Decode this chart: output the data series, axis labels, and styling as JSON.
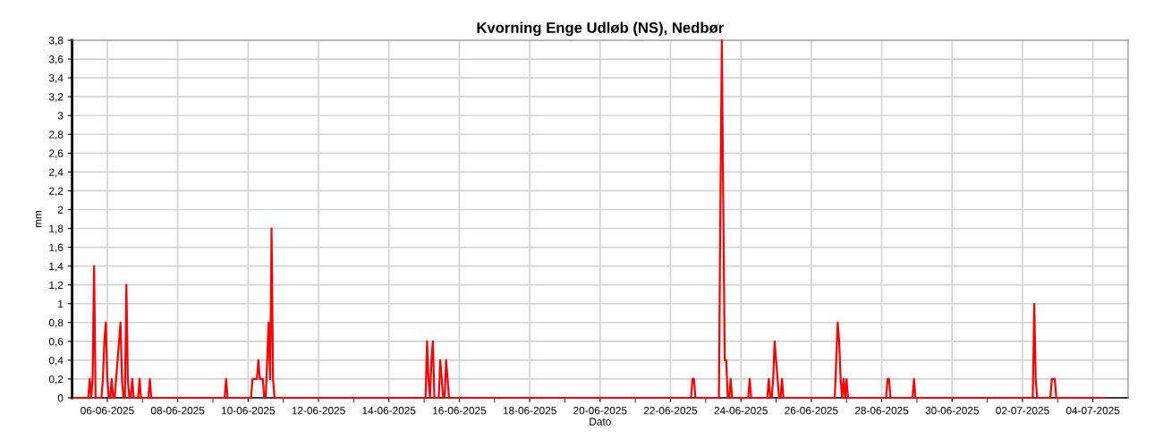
{
  "chart_data": {
    "type": "line",
    "title": "Kvorning Enge Udløb (NS), Nedbør",
    "xlabel": "Dato",
    "ylabel": "mm",
    "series": [
      {
        "color": "#ff0000",
        "x": [
          "2025-06-05T01:00",
          "2025-06-05T11:00",
          "2025-06-05T12:00",
          "2025-06-05T13:00",
          "2025-06-05T14:00",
          "2025-06-05T15:00",
          "2025-06-05T16:00",
          "2025-06-05T20:00",
          "2025-06-05T21:00",
          "2025-06-05T22:00",
          "2025-06-05T23:00",
          "2025-06-06T00:00",
          "2025-06-06T01:00",
          "2025-06-06T02:00",
          "2025-06-06T03:00",
          "2025-06-06T04:00",
          "2025-06-06T05:00",
          "2025-06-06T06:00",
          "2025-06-06T07:00",
          "2025-06-06T08:00",
          "2025-06-06T09:00",
          "2025-06-06T10:00",
          "2025-06-06T11:00",
          "2025-06-06T12:00",
          "2025-06-06T13:00",
          "2025-06-06T14:00",
          "2025-06-06T15:00",
          "2025-06-06T16:00",
          "2025-06-06T17:00",
          "2025-06-06T18:00",
          "2025-06-06T21:00",
          "2025-06-06T22:00",
          "2025-06-06T23:00",
          "2025-06-07T04:00",
          "2025-06-07T05:00",
          "2025-06-07T06:00",
          "2025-06-09T08:00",
          "2025-06-09T09:00",
          "2025-06-09T10:00",
          "2025-06-10T02:00",
          "2025-06-10T03:00",
          "2025-06-10T04:00",
          "2025-06-10T05:00",
          "2025-06-10T06:00",
          "2025-06-10T07:00",
          "2025-06-10T08:00",
          "2025-06-10T09:00",
          "2025-06-10T10:00",
          "2025-06-10T11:00",
          "2025-06-10T12:00",
          "2025-06-10T13:00",
          "2025-06-10T14:00",
          "2025-06-10T15:00",
          "2025-06-10T16:00",
          "2025-06-10T17:00",
          "2025-06-10T18:00",
          "2025-06-15T01:00",
          "2025-06-15T02:00",
          "2025-06-15T03:00",
          "2025-06-15T04:00",
          "2025-06-15T05:00",
          "2025-06-15T06:00",
          "2025-06-15T07:00",
          "2025-06-15T10:00",
          "2025-06-15T11:00",
          "2025-06-15T12:00",
          "2025-06-15T13:00",
          "2025-06-15T14:00",
          "2025-06-15T15:00",
          "2025-06-15T16:00",
          "2025-06-15T17:00",
          "2025-06-22T14:00",
          "2025-06-22T15:00",
          "2025-06-22T16:00",
          "2025-06-22T17:00",
          "2025-06-23T09:00",
          "2025-06-23T10:00",
          "2025-06-23T11:00",
          "2025-06-23T12:00",
          "2025-06-23T13:00",
          "2025-06-23T14:00",
          "2025-06-23T15:00",
          "2025-06-23T16:00",
          "2025-06-23T17:00",
          "2025-06-23T18:00",
          "2025-06-24T05:00",
          "2025-06-24T06:00",
          "2025-06-24T07:00",
          "2025-06-24T18:00",
          "2025-06-24T19:00",
          "2025-06-24T20:00",
          "2025-06-24T21:00",
          "2025-06-24T22:00",
          "2025-06-24T23:00",
          "2025-06-25T00:00",
          "2025-06-25T01:00",
          "2025-06-25T02:00",
          "2025-06-25T03:00",
          "2025-06-25T04:00",
          "2025-06-25T05:00",
          "2025-06-26T16:00",
          "2025-06-26T17:00",
          "2025-06-26T18:00",
          "2025-06-26T19:00",
          "2025-06-26T20:00",
          "2025-06-26T21:00",
          "2025-06-26T22:00",
          "2025-06-26T23:00",
          "2025-06-27T00:00",
          "2025-06-27T01:00",
          "2025-06-28T03:00",
          "2025-06-28T04:00",
          "2025-06-28T05:00",
          "2025-06-28T06:00",
          "2025-06-28T21:00",
          "2025-06-28T22:00",
          "2025-06-28T23:00",
          "2025-07-02T07:00",
          "2025-07-02T08:00",
          "2025-07-02T09:00",
          "2025-07-02T10:00",
          "2025-07-02T19:00",
          "2025-07-02T20:00",
          "2025-07-02T21:00",
          "2025-07-02T22:00",
          "2025-07-02T23:00",
          "2025-07-04T07:00"
        ],
        "values": [
          0,
          0,
          0.2,
          0,
          0.2,
          1.4,
          0,
          0,
          0.2,
          0.6,
          0.8,
          0.2,
          0,
          0,
          0.2,
          0,
          0,
          0.2,
          0.4,
          0.6,
          0.8,
          0.2,
          0,
          0,
          1.2,
          0.2,
          0,
          0,
          0.2,
          0,
          0,
          0.2,
          0,
          0,
          0.2,
          0,
          0,
          0.2,
          0,
          0,
          0.2,
          0.2,
          0.2,
          0.2,
          0.4,
          0.2,
          0.2,
          0.2,
          0,
          0,
          0.4,
          0.8,
          0.2,
          1.8,
          0.2,
          0,
          0,
          0.6,
          0.2,
          0,
          0.4,
          0.6,
          0,
          0,
          0.4,
          0.2,
          0,
          0,
          0.4,
          0.2,
          0,
          0,
          0.2,
          0.2,
          0,
          0,
          2.0,
          3.8,
          2.0,
          0.4,
          0.4,
          0,
          0,
          0.2,
          0,
          0,
          0.2,
          0,
          0,
          0.2,
          0,
          0,
          0.2,
          0.6,
          0.4,
          0.2,
          0,
          0,
          0.2,
          0,
          0,
          0.4,
          0.8,
          0.6,
          0.2,
          0,
          0.2,
          0,
          0.2,
          0,
          0,
          0.2,
          0.2,
          0,
          0,
          0.2,
          0,
          0,
          1.0,
          0.2,
          0,
          0,
          0.2,
          0.2,
          0.2,
          0,
          0
        ]
      }
    ],
    "xlim": [
      "2025-06-05",
      "2025-07-05"
    ],
    "xticks": [
      {
        "value": "2025-06-06",
        "label": "06-06-2025"
      },
      {
        "value": "2025-06-07",
        "label": null
      },
      {
        "value": "2025-06-08",
        "label": "08-06-2025"
      },
      {
        "value": "2025-06-09",
        "label": null
      },
      {
        "value": "2025-06-10",
        "label": "10-06-2025"
      },
      {
        "value": "2025-06-11",
        "label": null
      },
      {
        "value": "2025-06-12",
        "label": "12-06-2025"
      },
      {
        "value": "2025-06-13",
        "label": null
      },
      {
        "value": "2025-06-14",
        "label": "14-06-2025"
      },
      {
        "value": "2025-06-15",
        "label": null
      },
      {
        "value": "2025-06-16",
        "label": "16-06-2025"
      },
      {
        "value": "2025-06-17",
        "label": null
      },
      {
        "value": "2025-06-18",
        "label": "18-06-2025"
      },
      {
        "value": "2025-06-19",
        "label": null
      },
      {
        "value": "2025-06-20",
        "label": "20-06-2025"
      },
      {
        "value": "2025-06-21",
        "label": null
      },
      {
        "value": "2025-06-22",
        "label": "22-06-2025"
      },
      {
        "value": "2025-06-23",
        "label": null
      },
      {
        "value": "2025-06-24",
        "label": "24-06-2025"
      },
      {
        "value": "2025-06-25",
        "label": null
      },
      {
        "value": "2025-06-26",
        "label": "26-06-2025"
      },
      {
        "value": "2025-06-27",
        "label": null
      },
      {
        "value": "2025-06-28",
        "label": "28-06-2025"
      },
      {
        "value": "2025-06-29",
        "label": null
      },
      {
        "value": "2025-06-30",
        "label": "30-06-2025"
      },
      {
        "value": "2025-07-01",
        "label": null
      },
      {
        "value": "2025-07-02",
        "label": "02-07-2025"
      },
      {
        "value": "2025-07-03",
        "label": null
      },
      {
        "value": "2025-07-04",
        "label": "04-07-2025"
      }
    ],
    "ylim": [
      0,
      3.8
    ],
    "yticks": [
      0,
      {
        "value": 0.2,
        "label": "0,2"
      },
      {
        "value": 0.4,
        "label": "0,4"
      },
      {
        "value": 0.6,
        "label": "0,6"
      },
      {
        "value": 0.8,
        "label": "0,8"
      },
      1,
      {
        "value": 1.2,
        "label": "1,2"
      },
      {
        "value": 1.4,
        "label": "1,4"
      },
      {
        "value": 1.6,
        "label": "1,6"
      },
      {
        "value": 1.8,
        "label": "1,8"
      },
      2,
      {
        "value": 2.2,
        "label": "2,2"
      },
      {
        "value": 2.4,
        "label": "2,4"
      },
      {
        "value": 2.6,
        "label": "2,6"
      },
      {
        "value": 2.8,
        "label": "2,8"
      },
      3,
      {
        "value": 3.2,
        "label": "3,2"
      },
      {
        "value": 3.4,
        "label": "3,4"
      },
      {
        "value": 3.6,
        "label": "3,6"
      },
      {
        "value": 3.8,
        "label": "3,8"
      }
    ],
    "grid": true,
    "marker": "none",
    "line_style": "solid"
  }
}
